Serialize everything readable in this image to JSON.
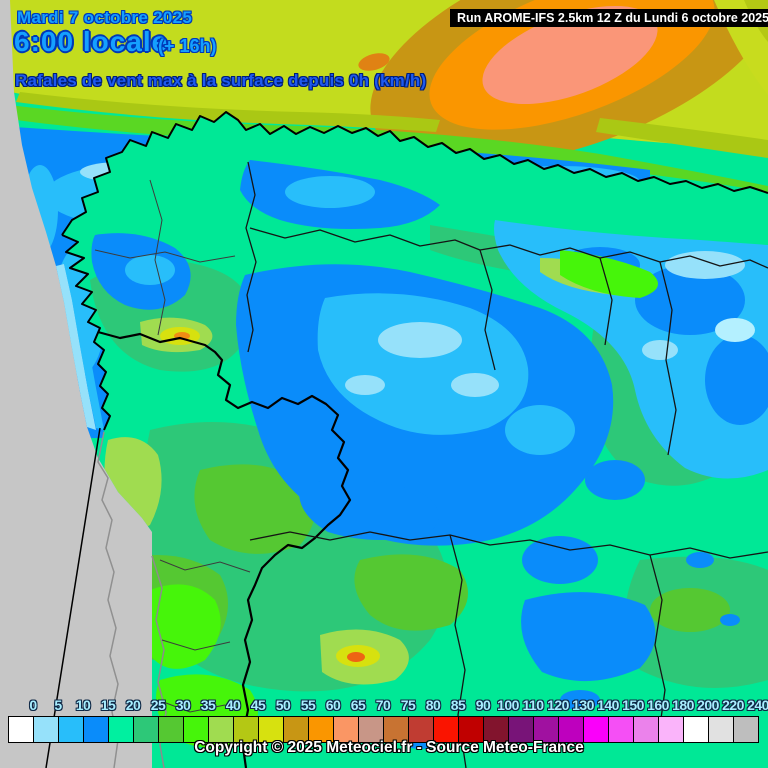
{
  "header": {
    "date": "Mardi 7 octobre 2025",
    "time": "6:00 locale",
    "forecast_offset": "(+ 16h)",
    "parameter": "Rafales de vent max à la surface depuis 0h (km/h)",
    "run": "Run AROME-IFS 2.5km 12 Z du Lundi 6 octobre 2025"
  },
  "footer": {
    "copyright": "Copyright © 2025 Meteociel.fr - Source Meteo-France"
  },
  "legend": {
    "unit": "km/h",
    "labels": [
      "0",
      "5",
      "10",
      "15",
      "20",
      "25",
      "30",
      "35",
      "40",
      "45",
      "50",
      "55",
      "60",
      "65",
      "70",
      "75",
      "80",
      "85",
      "90",
      "100",
      "110",
      "120",
      "130",
      "140",
      "150",
      "160",
      "180",
      "200",
      "220",
      "240"
    ],
    "colors": [
      "#FFFFFF",
      "#96E1FA",
      "#28BEFA",
      "#0A8CFA",
      "#00F0A0",
      "#2DC878",
      "#55C832",
      "#46F50A",
      "#A0DC50",
      "#B4C814",
      "#D7E10F",
      "#C89614",
      "#FA9600",
      "#FA9664",
      "#C89687",
      "#C87332",
      "#C03C32",
      "#FA1400",
      "#C00000",
      "#82142D",
      "#781478",
      "#A011A0",
      "#BE00BE",
      "#FA00FA",
      "#F54FF5",
      "#EB82EB",
      "#FAB4FA",
      "#FFFFFF",
      "#E1E1E1",
      "#BEBEBE"
    ]
  },
  "theme": {
    "title-blue": "#15A0FF",
    "title-outline": "#0038B8",
    "param-blue": "#1E5AF0",
    "param-outline": "#001E78",
    "legend-label-fill": "#A8EEFF",
    "legend-label-outline": "#0F2846",
    "run-bar-bg": "#000000",
    "run-text": "#FFFFFF",
    "copyright-fill": "#FFFFFF",
    "copyright-outline": "#000000"
  }
}
